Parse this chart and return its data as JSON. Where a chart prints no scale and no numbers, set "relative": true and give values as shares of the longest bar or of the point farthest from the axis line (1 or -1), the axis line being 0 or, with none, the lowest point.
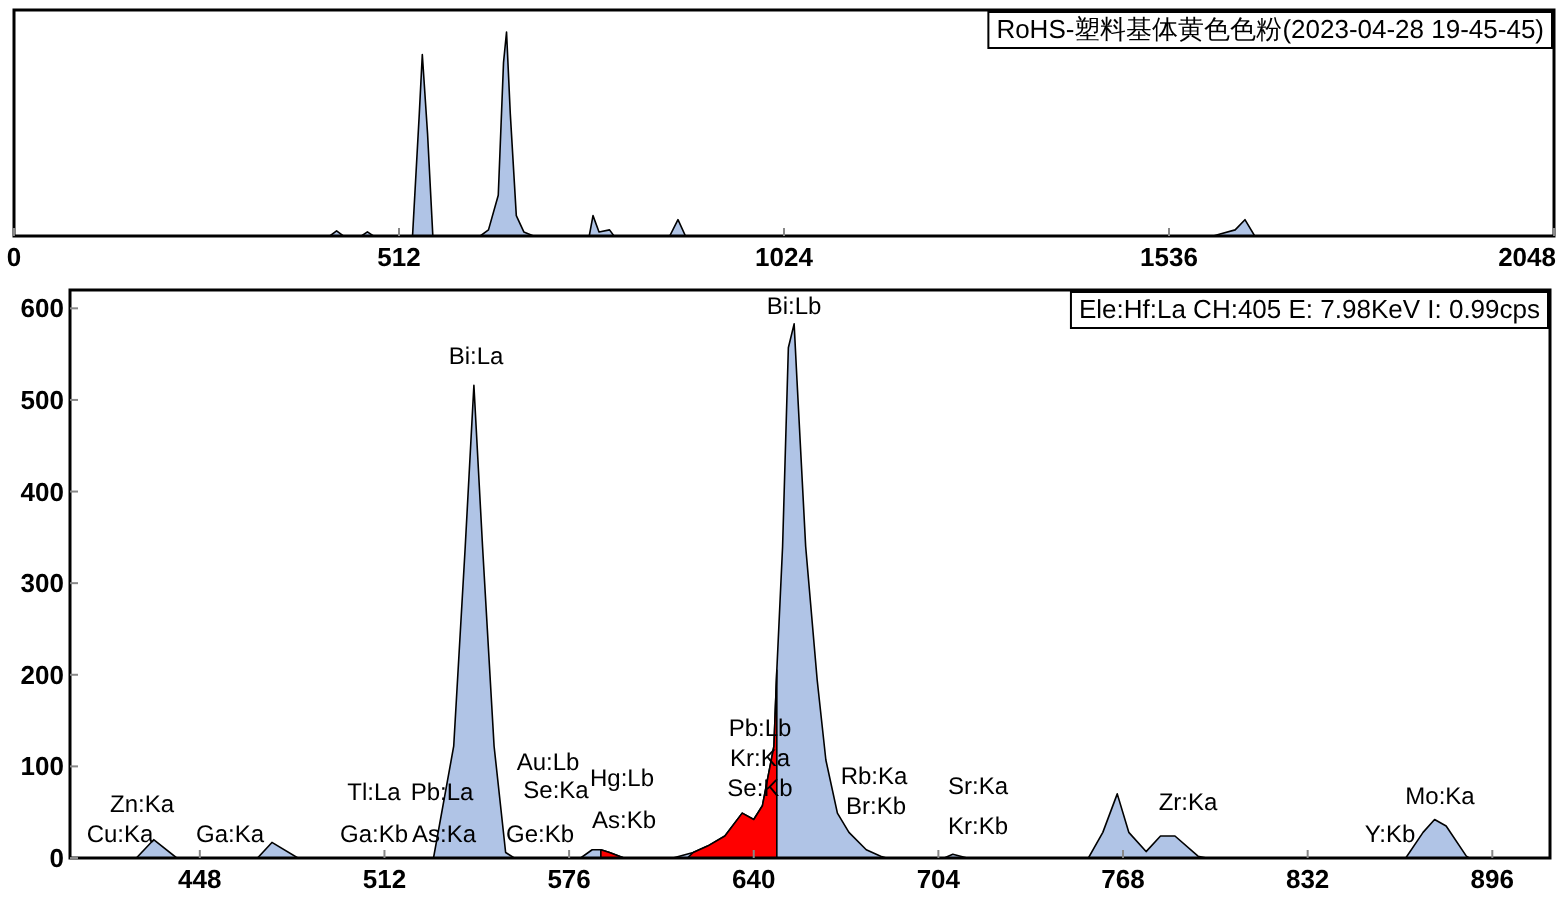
{
  "chart_data": [
    {
      "type": "area",
      "relative": true,
      "title": "RoHS-塑料基体黄色色粉(2023-04-28 19-45-45)",
      "color": "#b0c4e6",
      "xlim": [
        0,
        2048
      ],
      "xticks": [
        0,
        512,
        1024,
        1536,
        2048
      ],
      "x": [
        0,
        420,
        429,
        438,
        462,
        470,
        478,
        530,
        539,
        543,
        550,
        557,
        620,
        631,
        644,
        651,
        655,
        660,
        668,
        678,
        691,
        765,
        770,
        778,
        792,
        798,
        872,
        883,
        893,
        1595,
        1604,
        1624,
        1637,
        1650,
        2048
      ],
      "values": [
        0,
        0,
        0.025,
        0,
        0,
        0.02,
        0,
        0,
        0.6,
        0.89,
        0.5,
        0,
        0,
        0.03,
        0.2,
        0.85,
        1,
        0.6,
        0.1,
        0.02,
        0,
        0,
        0.1,
        0.02,
        0.03,
        0,
        0,
        0.08,
        0,
        0,
        0.01,
        0.03,
        0.08,
        0,
        0
      ]
    },
    {
      "type": "area",
      "xlim": [
        403,
        916
      ],
      "ylim": [
        0,
        620
      ],
      "xticks": [
        448,
        512,
        576,
        640,
        704,
        768,
        832,
        896
      ],
      "yticks": [
        0,
        100,
        200,
        300,
        400,
        500,
        600
      ],
      "series": [
        {
          "color": "#b0c4e6",
          "x": [
            403,
            426,
            432,
            440,
            468,
            473,
            482,
            529,
            536,
            540,
            543,
            546,
            550,
            554,
            557,
            580,
            584,
            587,
            590,
            595,
            612,
            619,
            624,
            630,
            636,
            640,
            643,
            647,
            648,
            650,
            652,
            654,
            655,
            658,
            662,
            665,
            669,
            673,
            679,
            684,
            686,
            706,
            709,
            714,
            756,
            761,
            766,
            770,
            776,
            781,
            786,
            794,
            797,
            866,
            872,
            876,
            880,
            887,
            888,
            916
          ],
          "values": [
            0,
            0,
            20,
            0,
            0,
            17,
            0,
            0,
            122,
            340,
            516,
            340,
            122,
            6,
            0,
            0,
            9,
            9,
            6,
            0,
            0,
            6,
            13,
            24,
            49,
            42,
            57,
            122,
            205,
            340,
            557,
            583,
            521,
            340,
            194,
            107,
            49,
            28,
            9,
            2,
            0,
            0,
            4,
            0,
            0,
            28,
            70,
            28,
            7,
            24,
            24,
            2,
            0,
            0,
            28,
            42,
            35,
            2,
            0,
            0
          ]
        },
        {
          "color": "#ff0000",
          "x": [
            617,
            619,
            624,
            630,
            636,
            640,
            643,
            647,
            648,
            648
          ],
          "values": [
            0,
            6,
            13,
            24,
            49,
            42,
            57,
            122,
            205,
            0
          ]
        },
        {
          "color": "#ff0000",
          "x": [
            587,
            590,
            595
          ],
          "values": [
            9,
            6,
            0
          ]
        }
      ],
      "annotations": [
        "Ele:Hf:La CH:405  E: 7.98KeV I:  0.99cps",
        "Cu:Ka",
        "Zn:Ka",
        "Ga:Ka",
        "Tl:La",
        "Pb:La",
        "Ga:Kb",
        "As:Ka",
        "Bi:La",
        "Se:Ka",
        "Ge:Kb",
        "Au:Lb",
        "Hg:Lb",
        "As:Kb",
        "Pb:Lb",
        "Kr:Ka",
        "Se:Kb",
        "Bi:Lb",
        "Rb:Ka",
        "Br:Kb",
        "Sr:Ka",
        "Kr:Kb",
        "Zr:Ka",
        "Y:Kb",
        "Mo:Ka"
      ]
    }
  ]
}
